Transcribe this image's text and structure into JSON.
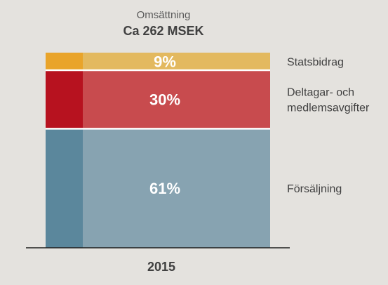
{
  "chart_data": {
    "type": "bar",
    "stacked": true,
    "title": "Omsättning",
    "subtitle": "Ca 262 MSEK",
    "categories": [
      "2015"
    ],
    "series": [
      {
        "name": "Försäljning",
        "label_lines": [
          "Försäljning"
        ],
        "values": [
          61
        ],
        "value_label": "61%",
        "color": "#87a3b1",
        "accent_color": "#5b879c"
      },
      {
        "name": "Deltagar- och medlemsavgifter",
        "label_lines": [
          "Deltagar- och",
          "medlemsavgifter"
        ],
        "values": [
          30
        ],
        "value_label": "30%",
        "color": "#c84b4e",
        "accent_color": "#b7121f"
      },
      {
        "name": "Statsbidrag",
        "label_lines": [
          "Statsbidrag"
        ],
        "values": [
          9
        ],
        "value_label": "9%",
        "color": "#e3b95f",
        "accent_color": "#e9a42a"
      }
    ],
    "ylim": [
      0,
      100
    ],
    "grid": false,
    "legend": "right"
  }
}
